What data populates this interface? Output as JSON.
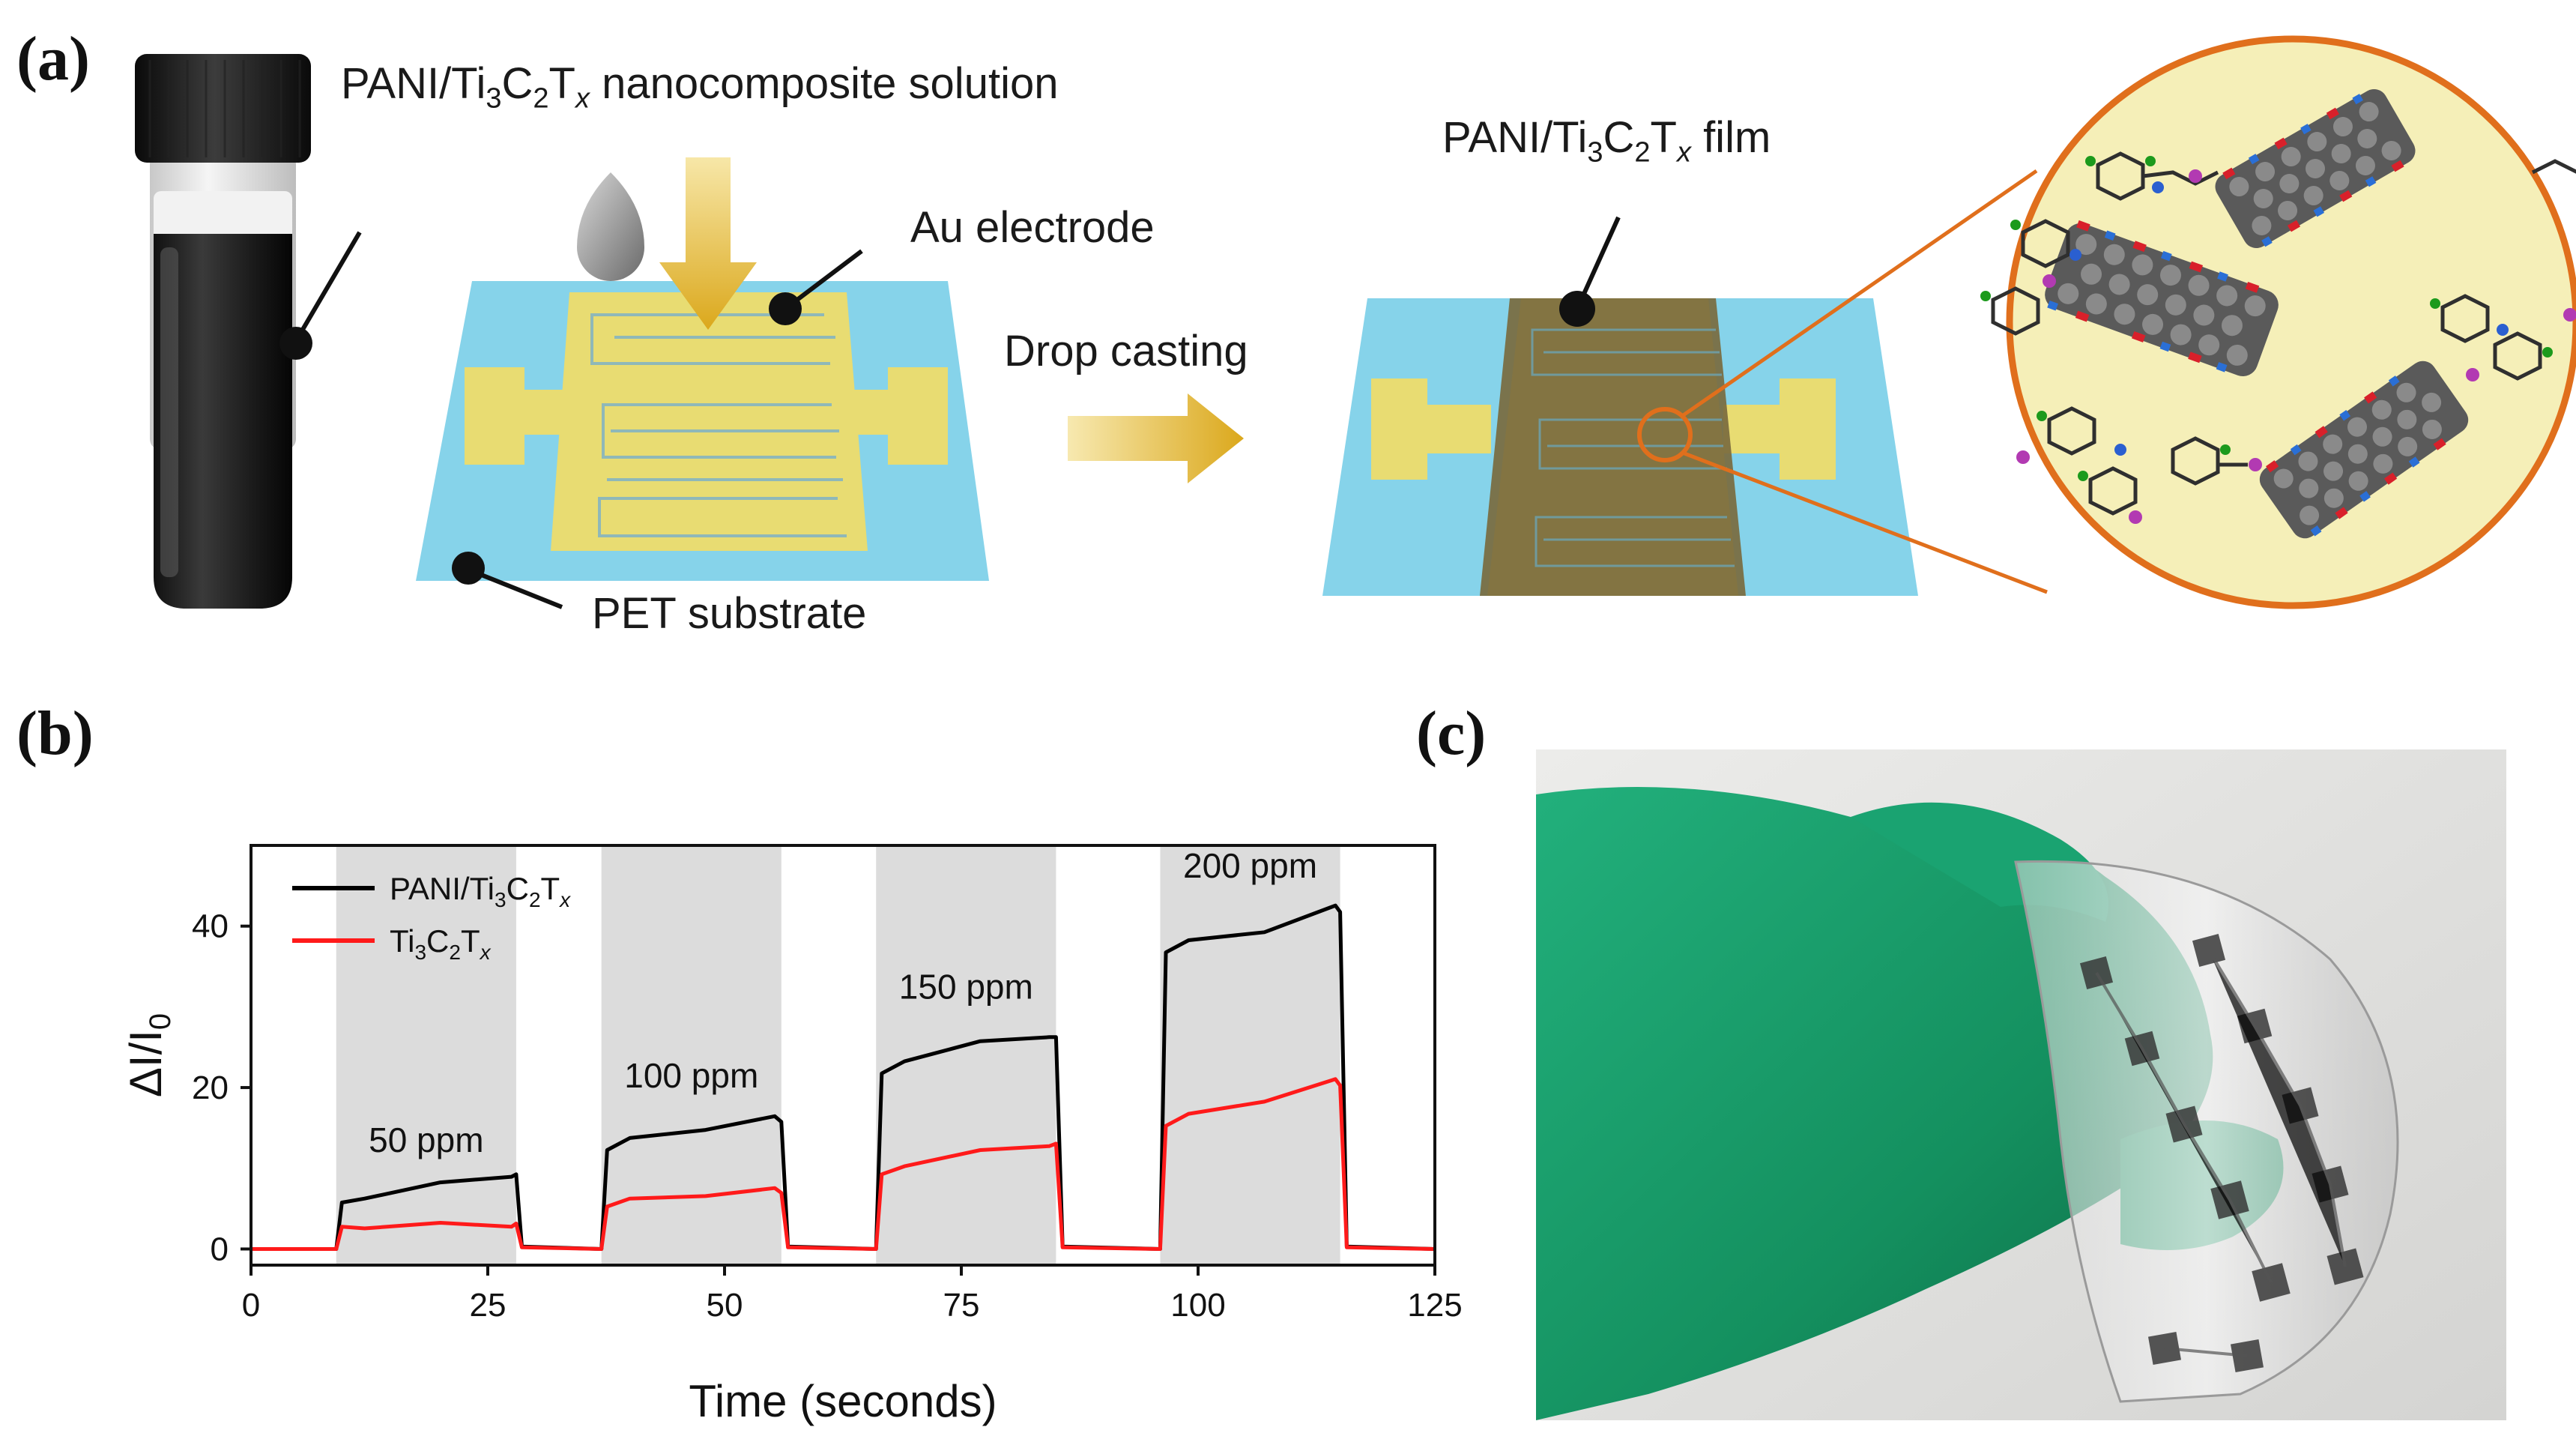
{
  "panels": {
    "a": {
      "label": "(a)"
    },
    "b": {
      "label": "(b)"
    },
    "c": {
      "label": "(c)"
    }
  },
  "schematic": {
    "solution_pre": "PANI/Ti",
    "solution_sub1": "3",
    "solution_mid": "C",
    "solution_sub2": "2",
    "solution_t": "T",
    "solution_x": "x",
    "solution_post": " nanocomposite solution",
    "electrode_label": "Au electrode",
    "substrate_label": "PET substrate",
    "process_label": "Drop casting",
    "film_pre": "PANI/Ti",
    "film_sub1": "3",
    "film_mid": "C",
    "film_sub2": "2",
    "film_t": "T",
    "film_x": "x",
    "film_post": " film"
  },
  "colors": {
    "substrate": "#86d3ea",
    "electrode": "#e8dc72",
    "film": "#7a6a3e",
    "arrow": "#e3b12a",
    "zoom_circle": "#f5efb8",
    "zoom_border": "#e06f1c",
    "pani_series": "#000000",
    "mxene_series": "#ff1a1a",
    "exposure_band": "#dcdcdc",
    "glove": "#1a9a6c"
  },
  "chart_data": {
    "type": "line",
    "xlabel": "Time (seconds)",
    "ylabel_main": "ΔI/I",
    "ylabel_sub": "0",
    "xlim": [
      0,
      125
    ],
    "ylim": [
      -2,
      50
    ],
    "xticks": [
      0,
      25,
      50,
      75,
      100,
      125
    ],
    "yticks": [
      0,
      20,
      40
    ],
    "grid": false,
    "legend_position": "top-left",
    "exposures": [
      {
        "start": 9,
        "end": 28,
        "label": "50 ppm",
        "label_y": 12
      },
      {
        "start": 37,
        "end": 56,
        "label": "100 ppm",
        "label_y": 20
      },
      {
        "start": 66,
        "end": 85,
        "label": "150 ppm",
        "label_y": 31
      },
      {
        "start": 96,
        "end": 115,
        "label": "200 ppm",
        "label_y": 46
      }
    ],
    "series": [
      {
        "name": "PANI/Ti3C2Tx",
        "legend_pre": "PANI/Ti",
        "legend_sub1": "3",
        "legend_mid": "C",
        "legend_sub2": "2",
        "legend_t": "T",
        "legend_x": "x",
        "x": [
          0,
          9,
          9.6,
          12,
          20,
          27.5,
          28,
          28.6,
          37,
          37.6,
          40,
          48,
          55.3,
          56,
          56.7,
          66,
          66.6,
          69,
          77,
          84.3,
          85,
          85.7,
          96,
          96.6,
          99,
          107,
          114.5,
          115,
          115.7,
          125
        ],
        "y": [
          0,
          0,
          5.5,
          6.5,
          8,
          9.2,
          9,
          0.3,
          0,
          12.5,
          13.5,
          15,
          16.2,
          16,
          0.3,
          0,
          21.5,
          23.5,
          25.5,
          26.5,
          26,
          0.3,
          0,
          37,
          38,
          39.5,
          42.3,
          42,
          0.3,
          0
        ]
      },
      {
        "name": "Ti3C2Tx",
        "legend_pre": "Ti",
        "legend_sub1": "3",
        "legend_mid": "C",
        "legend_sub2": "2",
        "legend_t": "T",
        "legend_x": "x",
        "x": [
          0,
          9,
          9.6,
          12,
          20,
          27.5,
          28,
          28.6,
          37,
          37.6,
          40,
          48,
          55.3,
          56,
          56.7,
          66,
          66.6,
          69,
          77,
          84.3,
          85,
          85.7,
          96,
          96.6,
          99,
          107,
          114.5,
          115,
          115.7,
          125
        ],
        "y": [
          0,
          0,
          2.5,
          2.8,
          3,
          3,
          2.9,
          0.2,
          0,
          5.5,
          6,
          6.8,
          7.3,
          7.2,
          0.2,
          0,
          9,
          10.5,
          12,
          13,
          12.8,
          0.2,
          0,
          15.5,
          16.5,
          18.5,
          20.8,
          20.5,
          0.2,
          0
        ]
      }
    ]
  }
}
